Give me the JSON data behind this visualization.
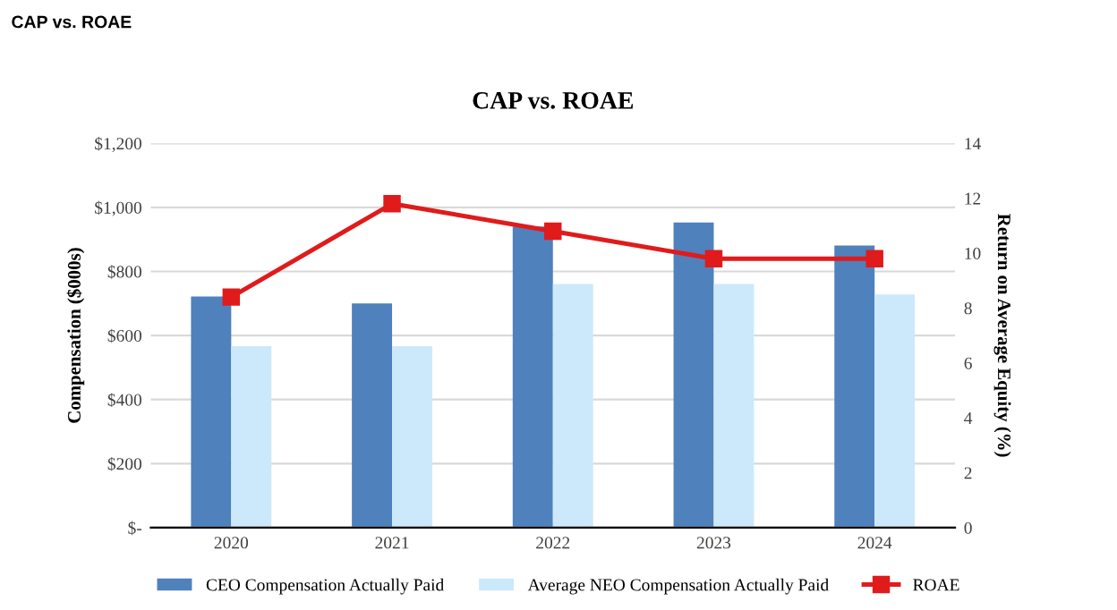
{
  "chart_data": {
    "type": "bar",
    "title": "CAP vs. ROAE",
    "annotations": [
      "CAP vs. ROAE"
    ],
    "ylabel": "Compensation ($000s)",
    "y2label": "Return on Average Equity (%)",
    "categories": [
      "2020",
      "2021",
      "2022",
      "2023",
      "2024"
    ],
    "series": [
      {
        "name": "CEO Compensation Actually Paid",
        "color": "#4f81bd",
        "values": [
          722,
          700,
          940,
          953,
          881
        ]
      },
      {
        "name": "Average NEO Compensation Actually Paid",
        "color": "#cce9fb",
        "values": [
          567,
          567,
          761,
          761,
          728
        ]
      },
      {
        "name": "ROAE",
        "type": "line",
        "axis": "y2",
        "color": "#e01b1b",
        "marker": "square",
        "values": [
          8.4,
          11.8,
          10.8,
          9.8,
          9.8
        ]
      }
    ],
    "ylim": [
      0,
      1200
    ],
    "yticks": [
      {
        "value": 0,
        "label": "$-"
      },
      {
        "value": 200,
        "label": "$200"
      },
      {
        "value": 400,
        "label": "$400"
      },
      {
        "value": 600,
        "label": "$600"
      },
      {
        "value": 800,
        "label": "$800"
      },
      {
        "value": 1000,
        "label": "$1,000"
      },
      {
        "value": 1200,
        "label": "$1,200"
      }
    ],
    "y2lim": [
      0,
      14
    ],
    "y2ticks": [
      0,
      2,
      4,
      6,
      8,
      10,
      12,
      14
    ],
    "grid": "y",
    "legend": "bottom"
  }
}
